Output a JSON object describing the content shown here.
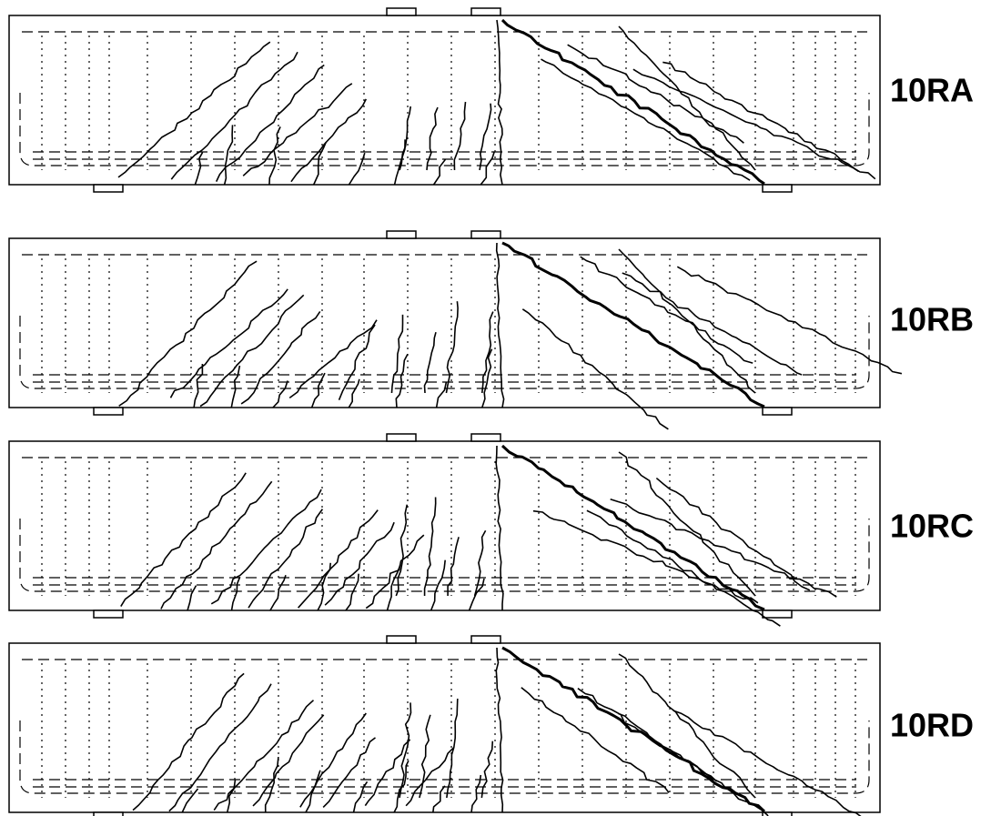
{
  "beams": [
    {
      "label": "10RA"
    },
    {
      "label": "10RB"
    },
    {
      "label": "10RC"
    },
    {
      "label": "10RD"
    }
  ]
}
